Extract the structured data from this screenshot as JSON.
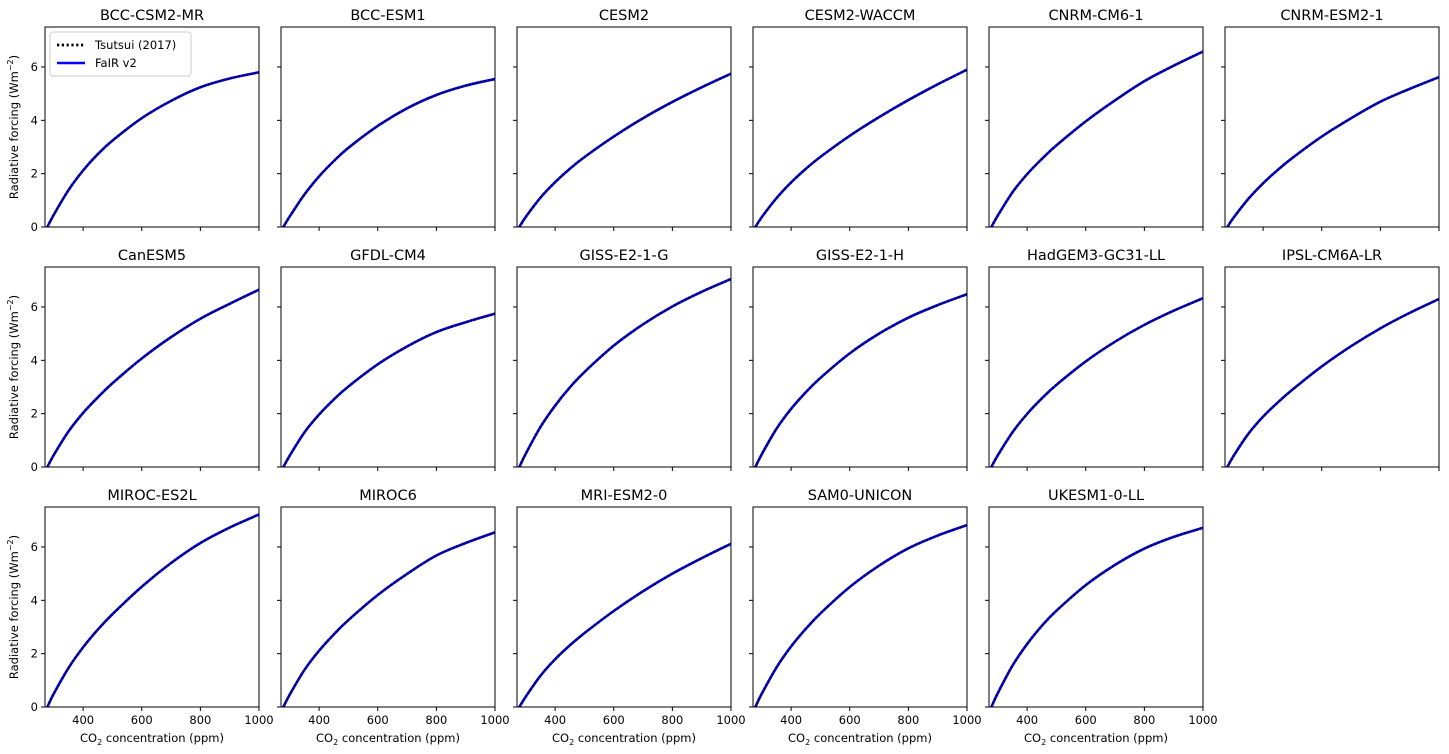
{
  "chart_data": {
    "type": "line",
    "layout": {
      "rows": 3,
      "cols": 6
    },
    "xlabel": "CO2 concentration (ppm)",
    "xlabel_main": "CO",
    "xlabel_sub": "2",
    "xlabel_rest": " concentration (ppm)",
    "ylabel": "Radiative forcing (Wm−2)",
    "ylabel_main": "Radiative forcing (Wm",
    "ylabel_sup": "−2",
    "ylabel_end": ")",
    "xlim": [
      270,
      1000
    ],
    "ylim": [
      0,
      7.5
    ],
    "x_ticks": [
      400,
      600,
      800,
      1000
    ],
    "y_ticks": [
      0,
      2,
      4,
      6
    ],
    "legend": {
      "placement": "upper-left of first panel",
      "entries": [
        {
          "label": "Tsutsui (2017)",
          "style": "dotted",
          "color": "#000000"
        },
        {
          "label": "FaIR v2",
          "style": "solid",
          "color": "#0000ff"
        }
      ]
    },
    "x": [
      278,
      300,
      350,
      400,
      450,
      500,
      600,
      700,
      800,
      900,
      1000
    ],
    "panels": [
      {
        "title": "BCC-CSM2-MR",
        "series": [
          {
            "name": "FaIR v2",
            "values": [
              0,
              0.46,
              1.38,
              2.12,
              2.73,
              3.24,
              4.08,
              4.73,
              5.24,
              5.57,
              5.8
            ]
          }
        ]
      },
      {
        "title": "BCC-ESM1",
        "series": [
          {
            "name": "FaIR v2",
            "values": [
              0,
              0.4,
              1.22,
              1.9,
              2.47,
              2.97,
              3.79,
              4.45,
              4.95,
              5.3,
              5.55
            ]
          }
        ]
      },
      {
        "title": "CESM2",
        "series": [
          {
            "name": "FaIR v2",
            "values": [
              0,
              0.38,
              1.1,
              1.68,
              2.18,
              2.62,
              3.39,
              4.08,
              4.69,
              5.24,
              5.75
            ]
          }
        ]
      },
      {
        "title": "CESM2-WACCM",
        "series": [
          {
            "name": "FaIR v2",
            "values": [
              0,
              0.37,
              1.08,
              1.67,
              2.18,
              2.63,
              3.42,
              4.12,
              4.76,
              5.35,
              5.9
            ]
          }
        ]
      },
      {
        "title": "CNRM-CM6-1",
        "series": [
          {
            "name": "FaIR v2",
            "values": [
              0,
              0.43,
              1.3,
              1.98,
              2.55,
              3.06,
              3.96,
              4.75,
              5.47,
              6.05,
              6.58
            ]
          }
        ]
      },
      {
        "title": "CNRM-ESM2-1",
        "series": [
          {
            "name": "FaIR v2",
            "values": [
              0,
              0.36,
              1.06,
              1.64,
              2.14,
              2.59,
              3.39,
              4.08,
              4.7,
              5.18,
              5.62
            ]
          }
        ]
      },
      {
        "title": "CanESM5",
        "series": [
          {
            "name": "FaIR v2",
            "values": [
              0,
              0.45,
              1.33,
              2.03,
              2.61,
              3.14,
              4.07,
              4.87,
              5.56,
              6.12,
              6.65
            ]
          }
        ]
      },
      {
        "title": "GFDL-CM4",
        "series": [
          {
            "name": "FaIR v2",
            "values": [
              0,
              0.43,
              1.3,
              1.97,
              2.53,
              3.02,
              3.85,
              4.52,
              5.06,
              5.43,
              5.75
            ]
          }
        ]
      },
      {
        "title": "GISS-E2-1-G",
        "series": [
          {
            "name": "FaIR v2",
            "values": [
              0,
              0.5,
              1.5,
              2.3,
              2.98,
              3.56,
              4.55,
              5.35,
              6.02,
              6.57,
              7.05
            ]
          }
        ]
      },
      {
        "title": "GISS-E2-1-H",
        "series": [
          {
            "name": "FaIR v2",
            "values": [
              0,
              0.48,
              1.43,
              2.18,
              2.8,
              3.34,
              4.26,
              5.0,
              5.6,
              6.07,
              6.48
            ]
          }
        ]
      },
      {
        "title": "HadGEM3-GC31-LL",
        "series": [
          {
            "name": "FaIR v2",
            "values": [
              0,
              0.44,
              1.3,
              1.99,
              2.57,
              3.08,
              3.96,
              4.7,
              5.33,
              5.86,
              6.33
            ]
          }
        ]
      },
      {
        "title": "IPSL-CM6A-LR",
        "series": [
          {
            "name": "FaIR v2",
            "values": [
              0,
              0.43,
              1.25,
              1.89,
              2.42,
              2.9,
              3.77,
              4.53,
              5.2,
              5.78,
              6.3
            ]
          }
        ]
      },
      {
        "title": "MIROC-ES2L",
        "series": [
          {
            "name": "FaIR v2",
            "values": [
              0,
              0.5,
              1.46,
              2.24,
              2.9,
              3.48,
              4.51,
              5.4,
              6.15,
              6.73,
              7.22
            ]
          }
        ]
      },
      {
        "title": "MIROC6",
        "series": [
          {
            "name": "FaIR v2",
            "values": [
              0,
              0.47,
              1.39,
              2.11,
              2.72,
              3.26,
              4.2,
              4.99,
              5.68,
              6.15,
              6.55
            ]
          }
        ]
      },
      {
        "title": "MRI-ESM2-0",
        "series": [
          {
            "name": "FaIR v2",
            "values": [
              0,
              0.39,
              1.17,
              1.79,
              2.31,
              2.77,
              3.6,
              4.34,
              5.0,
              5.58,
              6.12
            ]
          }
        ]
      },
      {
        "title": "SAM0-UNICON",
        "series": [
          {
            "name": "FaIR v2",
            "values": [
              0,
              0.5,
              1.48,
              2.27,
              2.93,
              3.51,
              4.5,
              5.3,
              5.95,
              6.43,
              6.82
            ]
          }
        ]
      },
      {
        "title": "UKESM1-0-LL",
        "series": [
          {
            "name": "FaIR v2",
            "values": [
              0,
              0.52,
              1.55,
              2.36,
              3.04,
              3.61,
              4.57,
              5.33,
              5.94,
              6.38,
              6.72
            ]
          }
        ]
      }
    ]
  }
}
